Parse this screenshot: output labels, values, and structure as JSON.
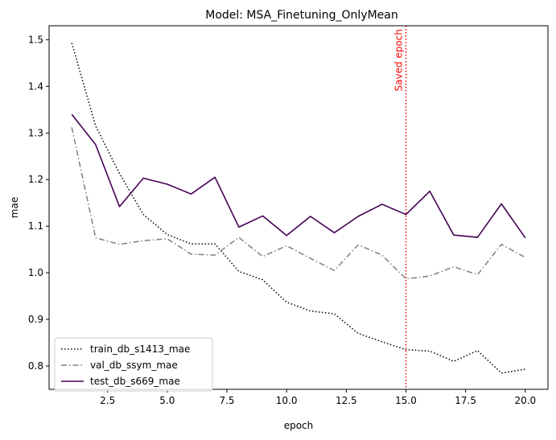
{
  "chart_data": {
    "type": "line",
    "title": "Model: MSA_Finetuning_OnlyMean",
    "xlabel": "epoch",
    "ylabel": "mae",
    "xlim": [
      0.05,
      20.95
    ],
    "ylim": [
      0.75,
      1.53
    ],
    "xticks": [
      2.5,
      5.0,
      7.5,
      10.0,
      12.5,
      15.0,
      17.5,
      20.0
    ],
    "xtick_labels": [
      "2.5",
      "5.0",
      "7.5",
      "10.0",
      "12.5",
      "15.0",
      "17.5",
      "20.0"
    ],
    "yticks": [
      0.8,
      0.9,
      1.0,
      1.1,
      1.2,
      1.3,
      1.4,
      1.5
    ],
    "ytick_labels": [
      "0.8",
      "0.9",
      "1.0",
      "1.1",
      "1.2",
      "1.3",
      "1.4",
      "1.5"
    ],
    "grid": false,
    "legend_position": "bottom-left",
    "x": [
      1,
      2,
      3,
      4,
      5,
      6,
      7,
      8,
      9,
      10,
      11,
      12,
      13,
      14,
      15,
      16,
      17,
      18,
      19,
      20
    ],
    "series": [
      {
        "name": "train_db_s1413_mae",
        "style": "dotted",
        "color": "#000000",
        "values": [
          1.493,
          1.315,
          1.213,
          1.125,
          1.082,
          1.062,
          1.062,
          1.003,
          0.985,
          0.937,
          0.918,
          0.912,
          0.87,
          0.852,
          0.835,
          0.832,
          0.81,
          0.833,
          0.785,
          0.793
        ]
      },
      {
        "name": "val_db_ssym_mae",
        "style": "dashdot",
        "color": "#808080",
        "values": [
          1.312,
          1.075,
          1.061,
          1.069,
          1.073,
          1.04,
          1.038,
          1.076,
          1.035,
          1.058,
          1.031,
          1.005,
          1.06,
          1.038,
          0.987,
          0.993,
          1.013,
          0.996,
          1.061,
          1.033
        ]
      },
      {
        "name": "test_db_s669_mae",
        "style": "solid",
        "color": "#440154",
        "values": [
          1.34,
          1.275,
          1.142,
          1.203,
          1.19,
          1.169,
          1.205,
          1.098,
          1.122,
          1.08,
          1.121,
          1.086,
          1.121,
          1.147,
          1.125,
          1.175,
          1.081,
          1.076,
          1.148,
          1.075
        ]
      }
    ],
    "annotations": [
      {
        "type": "vline",
        "x": 15,
        "color": "#ff0000",
        "style": "dotted",
        "label": "Saved epoch"
      }
    ]
  }
}
